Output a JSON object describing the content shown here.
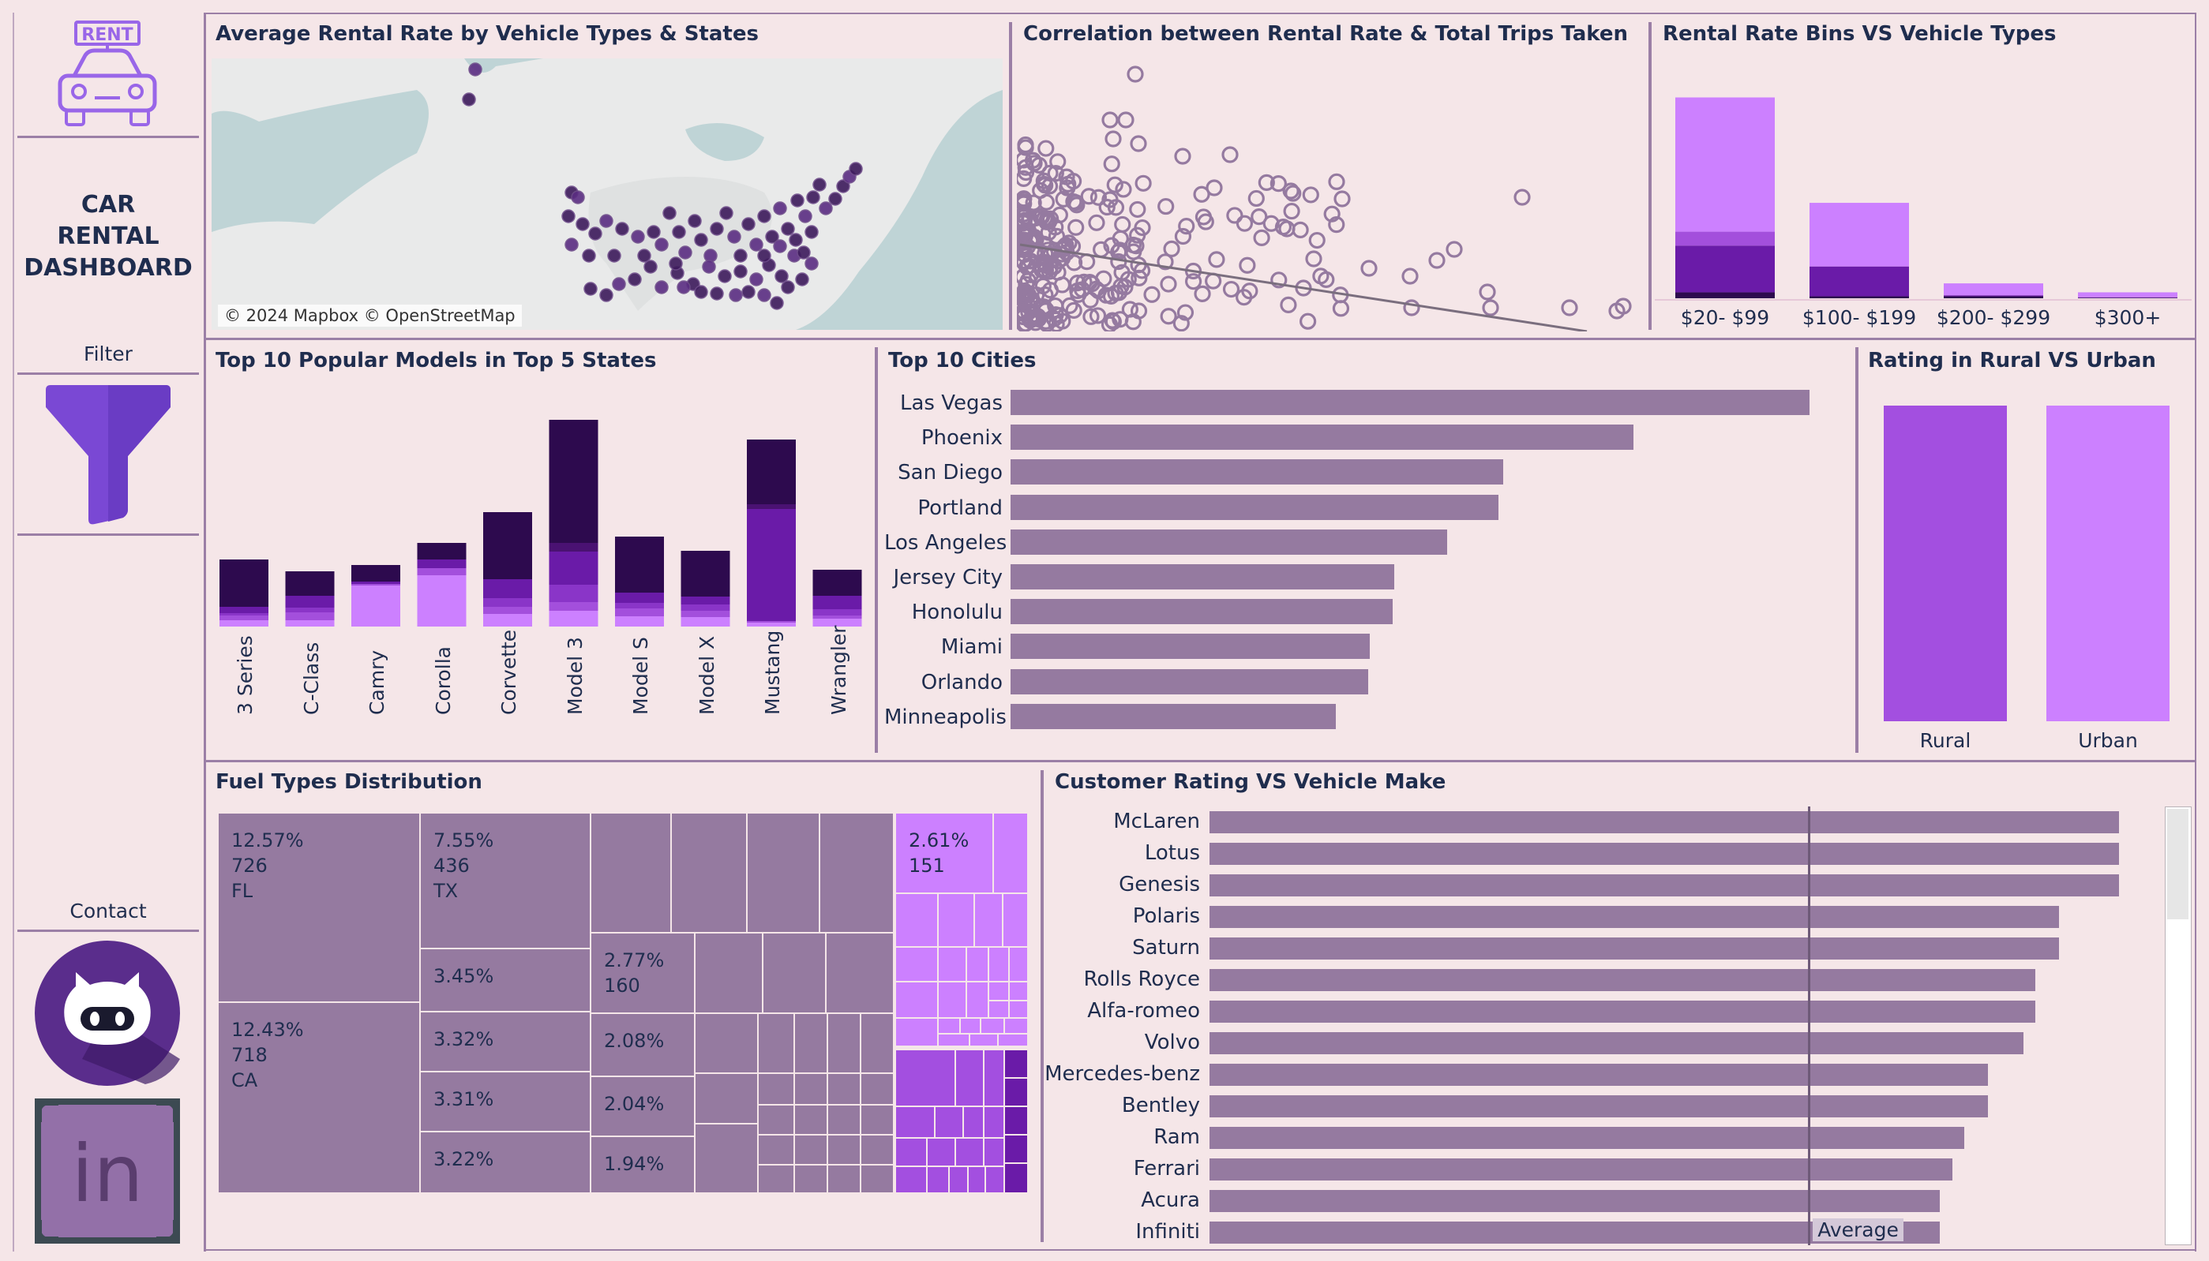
{
  "sidebar": {
    "logo_text": "RENT",
    "title_line1": "CAR",
    "title_line2": "RENTAL",
    "title_line3": "DASHBOARD",
    "filter_label": "Filter",
    "contact_label": "Contact",
    "linkedin_text": "in"
  },
  "colors": {
    "background": "#f5e6e8",
    "bar": "#957aa0",
    "purple_dark": "#2d0a4e",
    "purple_mid": "#6a1ba8",
    "purple_light": "#cc80ff",
    "text": "#1f2d4e"
  },
  "map": {
    "title": "Average Rental Rate by Vehicle Types & States",
    "attribution": "© 2024 Mapbox © OpenStreetMap"
  },
  "scatter": {
    "title": "Correlation between Rental Rate & Total Trips Taken"
  },
  "bins": {
    "title": "Rental Rate Bins VS Vehicle Types",
    "chart_data": {
      "type": "bar",
      "categories": [
        "$20- $99",
        "$100- $199",
        "$200- $299",
        "$300+"
      ],
      "stacked": true,
      "series": [
        {
          "values": [
            6,
            2,
            2,
            0.5
          ]
        },
        {
          "values": [
            47,
            30,
            1,
            0.5
          ]
        },
        {
          "values": [
            14,
            0,
            0,
            0
          ]
        },
        {
          "values": [
            135,
            64,
            12,
            5
          ]
        }
      ]
    }
  },
  "models": {
    "title": "Top 10 Popular Models in Top 5 States",
    "chart_data": {
      "type": "bar",
      "stacked": true,
      "categories": [
        "3 Series",
        "C-Class",
        "Camry",
        "Corolla",
        "Corvette",
        "Model 3",
        "Model S",
        "Model X",
        "Mustang",
        "Wrangler"
      ],
      "series": [
        {
          "values": [
            8,
            8,
            52,
            65,
            16,
            20,
            13,
            12,
            5,
            10
          ]
        },
        {
          "values": [
            6,
            10,
            2,
            9,
            9,
            11,
            10,
            8,
            2,
            4
          ]
        },
        {
          "values": [
            3,
            6,
            0,
            0,
            11,
            22,
            7,
            8,
            0,
            8
          ]
        },
        {
          "values": [
            8,
            15,
            3,
            11,
            24,
            42,
            13,
            10,
            142,
            17
          ]
        },
        {
          "values": [
            0,
            0,
            0,
            0,
            0,
            11,
            0,
            0,
            6,
            0
          ]
        },
        {
          "values": [
            60,
            31,
            21,
            21,
            85,
            156,
            71,
            58,
            82,
            33
          ]
        }
      ]
    }
  },
  "cities": {
    "title": "Top 10 Cities",
    "chart_data": {
      "type": "bar",
      "orientation": "horizontal",
      "categories": [
        "Las Vegas",
        "Phoenix",
        "San Diego",
        "Portland",
        "Los Angeles",
        "Jersey City",
        "Honolulu",
        "Miami",
        "Orlando",
        "Minneapolis"
      ],
      "values": [
        1000,
        780,
        617,
        611,
        546,
        480,
        478,
        450,
        448,
        407
      ]
    }
  },
  "rural": {
    "title": "Rating in Rural VS Urban",
    "chart_data": {
      "type": "bar",
      "categories": [
        "Rural",
        "Urban"
      ],
      "values": [
        4.9,
        4.9
      ]
    }
  },
  "fuel": {
    "title": "Fuel Types Distribution",
    "cells": [
      {
        "text": "12.57%\n726\nFL"
      },
      {
        "text": "12.43%\n718\nCA"
      },
      {
        "text": "7.55%\n436\nTX"
      },
      {
        "text": "3.45%"
      },
      {
        "text": "3.32%"
      },
      {
        "text": "3.31%"
      },
      {
        "text": "3.22%"
      },
      {
        "text": "2.77%\n160"
      },
      {
        "text": "2.08%"
      },
      {
        "text": "2.04%"
      },
      {
        "text": "1.94%"
      },
      {
        "text": "2.61%\n151"
      }
    ]
  },
  "make": {
    "title": "Customer Rating VS Vehicle Make",
    "average_label": "Average",
    "chart_data": {
      "type": "bar",
      "orientation": "horizontal",
      "categories": [
        "McLaren",
        "Lotus",
        "Genesis",
        "Polaris",
        "Saturn",
        "Rolls Royce",
        "Alfa-romeo",
        "Volvo",
        "Mercedes-benz",
        "Bentley",
        "Ram",
        "Ferrari",
        "Acura",
        "Infiniti"
      ],
      "values": [
        5.0,
        5.0,
        5.0,
        4.95,
        4.95,
        4.93,
        4.93,
        4.92,
        4.89,
        4.89,
        4.87,
        4.86,
        4.85,
        4.85
      ],
      "average": 4.73
    }
  }
}
